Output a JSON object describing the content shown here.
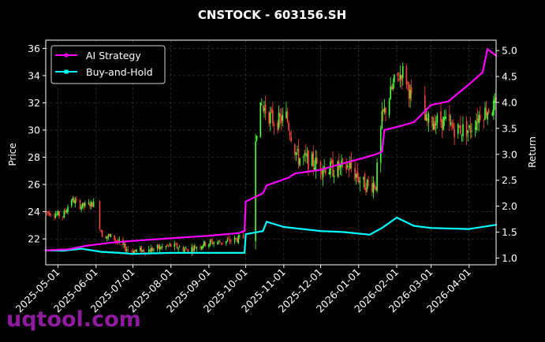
{
  "chart_data": {
    "type": "candlestick-with-lines",
    "title": "CNSTOCK - 603156.SH",
    "ylabel_left": "Price",
    "ylabel_right": "Return",
    "ylim_left": [
      20.1,
      36.6
    ],
    "ylim_right": [
      0.87,
      5.2
    ],
    "xlim": [
      "2025-04-21",
      "2026-04-23"
    ],
    "left_ticks": [
      22,
      24,
      26,
      28,
      30,
      32,
      34,
      36
    ],
    "right_ticks": [
      "1.0",
      "1.5",
      "2.0",
      "2.5",
      "3.0",
      "3.5",
      "4.0",
      "4.5",
      "5.0"
    ],
    "x_ticks": [
      "2025-05-01",
      "2025-06-01",
      "2025-07-01",
      "2025-08-01",
      "2025-09-01",
      "2025-10-01",
      "2025-11-01",
      "2025-12-01",
      "2026-01-01",
      "2026-02-01",
      "2026-03-01",
      "2026-04-01"
    ],
    "grid": true,
    "legend_position": "top-left",
    "colors": {
      "up": "#4cff3a",
      "down": "#ff4a3a",
      "ai": "#ff00ff",
      "bh": "#00ffff",
      "grid": "#3a3a3a"
    },
    "price_anchors": [
      [
        "2025-04-21",
        24.0
      ],
      [
        "2025-05-05",
        23.7
      ],
      [
        "2025-05-12",
        24.9
      ],
      [
        "2025-05-20",
        24.4
      ],
      [
        "2025-05-30",
        24.6
      ],
      [
        "2025-06-06",
        22.3
      ],
      [
        "2025-06-15",
        22.1
      ],
      [
        "2025-06-25",
        21.3
      ],
      [
        "2025-07-01",
        21.1
      ],
      [
        "2025-07-15",
        21.2
      ],
      [
        "2025-08-01",
        21.5
      ],
      [
        "2025-08-15",
        21.2
      ],
      [
        "2025-08-30",
        21.7
      ],
      [
        "2025-09-15",
        21.8
      ],
      [
        "2025-09-29",
        22.1
      ],
      [
        "2025-10-09",
        29.8
      ],
      [
        "2025-10-14",
        31.8
      ],
      [
        "2025-10-25",
        30.5
      ],
      [
        "2025-11-03",
        31.0
      ],
      [
        "2025-11-12",
        28.0
      ],
      [
        "2025-11-25",
        27.6
      ],
      [
        "2025-12-10",
        27.1
      ],
      [
        "2025-12-25",
        27.3
      ],
      [
        "2026-01-05",
        26.0
      ],
      [
        "2026-01-15",
        26.1
      ],
      [
        "2026-01-20",
        30.8
      ],
      [
        "2026-01-30",
        33.5
      ],
      [
        "2026-02-07",
        34.4
      ],
      [
        "2026-02-14",
        31.8
      ],
      [
        "2026-02-25",
        30.6
      ],
      [
        "2026-03-10",
        30.7
      ],
      [
        "2026-03-20",
        30.1
      ],
      [
        "2026-04-01",
        30.0
      ],
      [
        "2026-04-10",
        31.2
      ],
      [
        "2026-04-23",
        31.8
      ]
    ],
    "gaps": [
      [
        "2025-06-02",
        "2025-06-03"
      ],
      [
        "2025-09-30",
        "2025-10-08"
      ],
      [
        "2026-02-15",
        "2026-02-23"
      ]
    ],
    "series": [
      {
        "name": "AI Strategy",
        "points": [
          [
            "2025-04-21",
            1.15
          ],
          [
            "2025-05-10",
            1.17
          ],
          [
            "2025-05-25",
            1.24
          ],
          [
            "2025-06-15",
            1.3
          ],
          [
            "2025-07-01",
            1.33
          ],
          [
            "2025-08-01",
            1.38
          ],
          [
            "2025-09-01",
            1.43
          ],
          [
            "2025-09-25",
            1.48
          ],
          [
            "2025-09-30",
            1.52
          ],
          [
            "2025-10-01",
            2.09
          ],
          [
            "2025-10-15",
            2.25
          ],
          [
            "2025-10-18",
            2.4
          ],
          [
            "2025-11-05",
            2.55
          ],
          [
            "2025-11-10",
            2.63
          ],
          [
            "2025-12-01",
            2.7
          ],
          [
            "2025-12-20",
            2.83
          ],
          [
            "2026-01-05",
            2.93
          ],
          [
            "2026-01-15",
            3.0
          ],
          [
            "2026-01-20",
            3.05
          ],
          [
            "2026-01-22",
            3.47
          ],
          [
            "2026-02-05",
            3.55
          ],
          [
            "2026-02-15",
            3.62
          ],
          [
            "2026-03-01",
            3.95
          ],
          [
            "2026-03-15",
            4.02
          ],
          [
            "2026-04-01",
            4.35
          ],
          [
            "2026-04-12",
            4.58
          ],
          [
            "2026-04-16",
            5.03
          ],
          [
            "2026-04-23",
            4.9
          ]
        ]
      },
      {
        "name": "Buy-and-Hold",
        "points": [
          [
            "2025-04-21",
            1.15
          ],
          [
            "2025-05-05",
            1.14
          ],
          [
            "2025-05-20",
            1.18
          ],
          [
            "2025-06-05",
            1.12
          ],
          [
            "2025-06-20",
            1.1
          ],
          [
            "2025-07-01",
            1.08
          ],
          [
            "2025-08-01",
            1.1
          ],
          [
            "2025-09-01",
            1.1
          ],
          [
            "2025-09-30",
            1.1
          ],
          [
            "2025-10-01",
            1.46
          ],
          [
            "2025-10-15",
            1.52
          ],
          [
            "2025-10-18",
            1.7
          ],
          [
            "2025-11-01",
            1.6
          ],
          [
            "2025-12-01",
            1.52
          ],
          [
            "2025-12-20",
            1.5
          ],
          [
            "2026-01-10",
            1.45
          ],
          [
            "2026-01-20",
            1.58
          ],
          [
            "2026-02-01",
            1.78
          ],
          [
            "2026-02-15",
            1.62
          ],
          [
            "2026-03-01",
            1.58
          ],
          [
            "2026-04-01",
            1.56
          ],
          [
            "2026-04-23",
            1.64
          ]
        ]
      }
    ]
  },
  "watermark": "uqtool.com"
}
